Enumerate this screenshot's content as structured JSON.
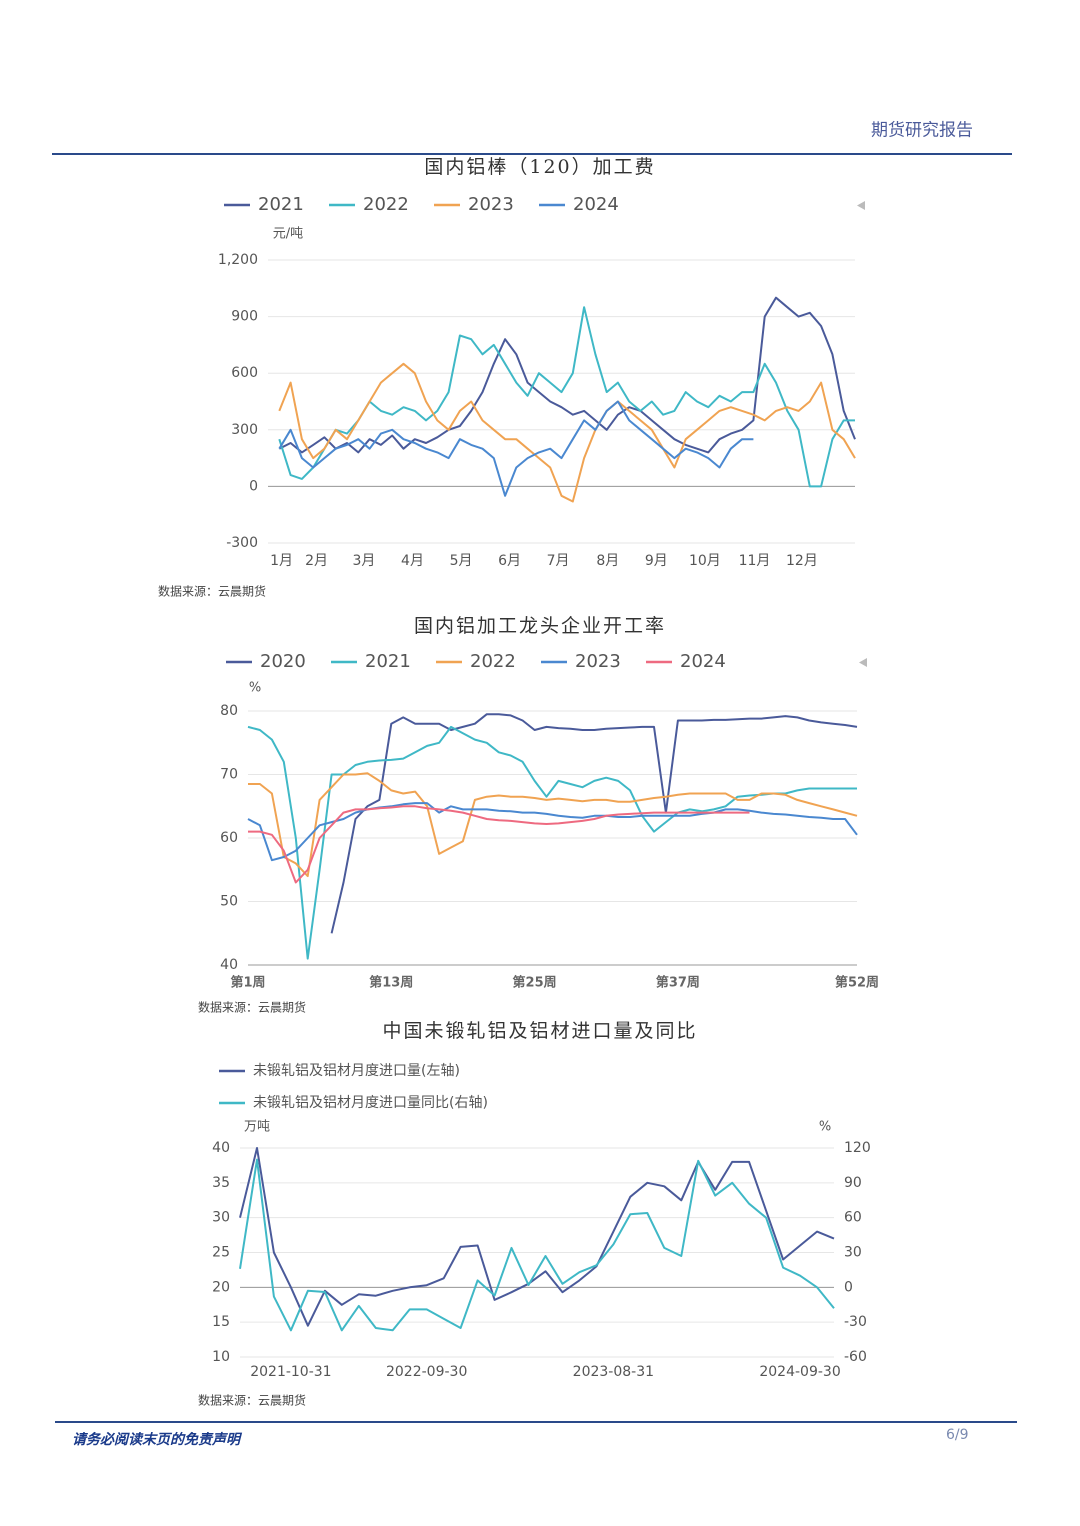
{
  "header": {
    "title": "期货研究报告"
  },
  "footer": {
    "disclaimer": "请务必阅读末页的免责声明",
    "page": "6/9"
  },
  "chart_data": [
    {
      "type": "line",
      "title": "国内铝棒（120）加工费",
      "y_unit": "元/吨",
      "source": "数据来源：云晨期货",
      "x": [
        1,
        2,
        3,
        4,
        5,
        6,
        7,
        8,
        9,
        10,
        11,
        12,
        13,
        14,
        15,
        16,
        17,
        18,
        19,
        20,
        21,
        22,
        23,
        24,
        25,
        26,
        27,
        28,
        29,
        30,
        31,
        32,
        33,
        34,
        35,
        36,
        37,
        38,
        39,
        40,
        41,
        42,
        43,
        44,
        45,
        46,
        47,
        48,
        49,
        50,
        51,
        52
      ],
      "xlim": [
        0,
        52
      ],
      "xticks": [
        {
          "value": 1.2,
          "label": "1月"
        },
        {
          "value": 4.3,
          "label": "2月"
        },
        {
          "value": 8.5,
          "label": "3月"
        },
        {
          "value": 12.8,
          "label": "4月"
        },
        {
          "value": 17.1,
          "label": "5月"
        },
        {
          "value": 21.4,
          "label": "6月"
        },
        {
          "value": 25.7,
          "label": "7月"
        },
        {
          "value": 30.1,
          "label": "8月"
        },
        {
          "value": 34.4,
          "label": "9月"
        },
        {
          "value": 38.7,
          "label": "10月"
        },
        {
          "value": 43.1,
          "label": "11月"
        },
        {
          "value": 47.3,
          "label": "12月"
        }
      ],
      "ylim": [
        -300,
        1200
      ],
      "yticks": [
        -300,
        0,
        300,
        600,
        900,
        {
          "value": 1200,
          "label": "1,200"
        }
      ],
      "grid": true,
      "series": [
        {
          "name": "2021",
          "color": "#4a5a9a",
          "values": [
            200,
            230,
            180,
            220,
            260,
            200,
            230,
            180,
            250,
            220,
            270,
            200,
            250,
            230,
            260,
            300,
            320,
            400,
            500,
            650,
            780,
            700,
            550,
            500,
            450,
            420,
            380,
            400,
            350,
            300,
            380,
            420,
            400,
            350,
            300,
            250,
            220,
            200,
            180,
            250,
            280,
            300,
            350,
            900,
            1000,
            950,
            900,
            920,
            850,
            700,
            400,
            250
          ]
        },
        {
          "name": "2022",
          "color": "#3fb8c6",
          "values": [
            250,
            60,
            40,
            100,
            200,
            300,
            280,
            350,
            450,
            400,
            380,
            420,
            400,
            350,
            400,
            500,
            800,
            780,
            700,
            750,
            650,
            550,
            480,
            600,
            550,
            500,
            600,
            950,
            700,
            500,
            550,
            450,
            400,
            450,
            380,
            400,
            500,
            450,
            420,
            480,
            450,
            500,
            500,
            650,
            550,
            400,
            300,
            0,
            0,
            250,
            350,
            350
          ]
        },
        {
          "name": "2023",
          "color": "#f0a352",
          "values": [
            400,
            550,
            250,
            150,
            200,
            300,
            250,
            350,
            450,
            550,
            600,
            650,
            600,
            450,
            350,
            300,
            400,
            450,
            350,
            300,
            250,
            250,
            200,
            150,
            100,
            -50,
            -80,
            150,
            300,
            400,
            450,
            400,
            350,
            300,
            200,
            100,
            250,
            300,
            350,
            400,
            420,
            400,
            380,
            350,
            400,
            420,
            400,
            450,
            550,
            300,
            250,
            150
          ]
        },
        {
          "name": "2024",
          "color": "#4a88d0",
          "values": [
            200,
            300,
            150,
            100,
            150,
            200,
            220,
            250,
            200,
            280,
            300,
            250,
            230,
            200,
            180,
            150,
            250,
            220,
            200,
            150,
            -50,
            100,
            150,
            180,
            200,
            150,
            250,
            350,
            300,
            400,
            450,
            350,
            300,
            250,
            200,
            150,
            200,
            180,
            150,
            100,
            200,
            250,
            250,
            null,
            null,
            null,
            null,
            null,
            null,
            null,
            null,
            null
          ]
        }
      ]
    },
    {
      "type": "line",
      "title": "国内铝加工龙头企业开工率",
      "y_unit": "%",
      "source": "数据来源：云晨期货",
      "x": [
        1,
        2,
        3,
        4,
        5,
        6,
        7,
        8,
        9,
        10,
        11,
        12,
        13,
        14,
        15,
        16,
        17,
        18,
        19,
        20,
        21,
        22,
        23,
        24,
        25,
        26,
        27,
        28,
        29,
        30,
        31,
        32,
        33,
        34,
        35,
        36,
        37,
        38,
        39,
        40,
        41,
        42,
        43,
        44,
        45,
        46,
        47,
        48,
        49,
        50,
        51,
        52
      ],
      "xlim": [
        1,
        52
      ],
      "xticks": [
        {
          "value": 1,
          "label": "第1周"
        },
        {
          "value": 13,
          "label": "第13周"
        },
        {
          "value": 25,
          "label": "第25周"
        },
        {
          "value": 37,
          "label": "第37周"
        },
        {
          "value": 52,
          "label": "第52周"
        }
      ],
      "ylim": [
        40,
        80
      ],
      "yticks": [
        40,
        50,
        60,
        70,
        80
      ],
      "grid": true,
      "series": [
        {
          "name": "2020",
          "color": "#4a5a9a",
          "values": [
            null,
            null,
            null,
            null,
            null,
            null,
            null,
            45,
            53,
            63,
            65,
            66,
            78,
            79,
            78,
            78,
            78,
            77,
            77.5,
            78,
            79.5,
            79.5,
            79.3,
            78.5,
            77,
            77.5,
            77.3,
            77.2,
            77,
            77,
            77.2,
            77.3,
            77.4,
            77.5,
            77.5,
            64,
            78.5,
            78.5,
            78.5,
            78.6,
            78.6,
            78.7,
            78.8,
            78.8,
            79,
            79.2,
            79,
            78.5,
            78.2,
            78,
            77.8,
            77.5
          ]
        },
        {
          "name": "2021",
          "color": "#3fb8c6",
          "values": [
            77.5,
            77,
            75.5,
            72,
            60,
            41,
            55,
            70,
            70,
            71.5,
            72,
            72.2,
            72.3,
            72.5,
            73.5,
            74.5,
            75,
            77.5,
            76.5,
            75.5,
            75,
            73.5,
            73,
            72,
            69,
            66.5,
            69,
            68.5,
            68,
            69,
            69.5,
            69,
            67.5,
            63.5,
            61,
            62.5,
            64,
            64.5,
            64.2,
            64.5,
            65,
            66.5,
            66.7,
            66.8,
            67,
            67,
            67.5,
            67.8,
            67.8,
            67.8,
            67.8,
            67.8
          ]
        },
        {
          "name": "2022",
          "color": "#f0a352",
          "values": [
            68.5,
            68.5,
            67,
            57,
            56,
            54,
            66,
            68,
            70,
            70,
            70.2,
            69,
            67.5,
            67,
            67.3,
            65,
            57.5,
            58.5,
            59.5,
            66,
            66.5,
            66.7,
            66.5,
            66.5,
            66.3,
            66,
            66.2,
            66,
            65.8,
            66,
            66,
            65.7,
            65.7,
            66,
            66.3,
            66.5,
            66.8,
            67,
            67,
            67,
            67,
            66,
            66,
            67,
            67,
            66.8,
            66,
            65.5,
            65,
            64.5,
            64,
            63.5
          ]
        },
        {
          "name": "2023",
          "color": "#4a88d0",
          "values": [
            63,
            62,
            56.5,
            57,
            58,
            60,
            62,
            62.5,
            63,
            64,
            64.5,
            64.8,
            65,
            65.3,
            65.5,
            65.5,
            64,
            65,
            64.5,
            64.5,
            64.5,
            64.3,
            64.2,
            64,
            64,
            63.8,
            63.5,
            63.3,
            63.2,
            63.5,
            63.5,
            63.3,
            63.3,
            63.5,
            63.5,
            63.5,
            63.5,
            63.5,
            63.8,
            64,
            64.5,
            64.5,
            64.3,
            64,
            63.8,
            63.7,
            63.5,
            63.3,
            63.2,
            63,
            63,
            60.5
          ]
        },
        {
          "name": "2024",
          "color": "#ee6a80",
          "values": [
            61,
            61,
            60.5,
            58,
            53,
            55,
            60,
            62,
            64,
            64.5,
            64.5,
            64.7,
            64.8,
            65,
            65,
            64.7,
            64.5,
            64.3,
            64,
            63.5,
            63,
            62.8,
            62.7,
            62.5,
            62.3,
            62.2,
            62.3,
            62.5,
            62.7,
            63,
            63.5,
            63.7,
            63.8,
            63.9,
            64,
            64,
            64,
            64,
            64,
            64,
            64,
            64,
            64,
            null,
            null,
            null,
            null,
            null,
            null,
            null,
            null,
            null
          ]
        }
      ]
    },
    {
      "type": "line",
      "title": "中国未锻轧铝及铝材进口量及同比",
      "y_unit": "万吨",
      "y2_unit": "%",
      "source": "数据来源：云晨期货",
      "categories": [
        null,
        null,
        null,
        "2021-10-31",
        null,
        null,
        null,
        null,
        null,
        null,
        null,
        "2022-09-30",
        null,
        null,
        null,
        null,
        null,
        null,
        null,
        null,
        null,
        null,
        "2023-08-31",
        null,
        null,
        null,
        null,
        null,
        null,
        null,
        null,
        null,
        null,
        "2024-09-30",
        null,
        null
      ],
      "ylim": [
        10,
        40
      ],
      "yticks": [
        10,
        15,
        20,
        25,
        30,
        35,
        40
      ],
      "y2lim": [
        -60,
        120
      ],
      "y2ticks": [
        -60,
        -30,
        0,
        30,
        60,
        90,
        120
      ],
      "grid": true,
      "series": [
        {
          "name": "未锻轧铝及铝材月度进口量(左轴)",
          "color": "#4a5a9a",
          "values": [
            30,
            40,
            25,
            20,
            14.5,
            19.5,
            17.5,
            19,
            18.8,
            19.5,
            20,
            20.3,
            21.3,
            25.8,
            26,
            18.2,
            19.3,
            20.5,
            22.3,
            19.3,
            21,
            23,
            28,
            33,
            35,
            34.5,
            32.5,
            38,
            34,
            38,
            38,
            31,
            24,
            26,
            28,
            27
          ]
        },
        {
          "name": "未锻轧铝及铝材月度进口量同比(右轴)",
          "color": "#3fb8c6",
          "axis": "y2",
          "values": [
            16,
            110,
            -8,
            -37,
            -3,
            -4,
            -37,
            -16,
            -35,
            -37,
            -19,
            -19,
            -27,
            -35,
            6,
            -7,
            34,
            2,
            27,
            3,
            13,
            19,
            37,
            63,
            64,
            34,
            27,
            109,
            79,
            90,
            72,
            60,
            17,
            10,
            0,
            -18
          ]
        }
      ]
    }
  ]
}
